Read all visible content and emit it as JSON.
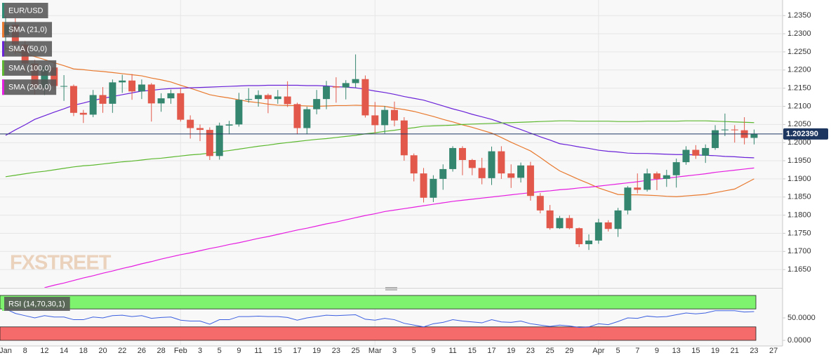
{
  "chart_data": {
    "type": "candlestick",
    "name": "EUR/USD",
    "color": "#2e8b74",
    "color_up": "#34866f",
    "color_down": "#e2584a",
    "watermark": "FXSTREET",
    "categories": [
      "Jan",
      null,
      "8",
      null,
      "12",
      null,
      "14",
      null,
      "18",
      null,
      "20",
      null,
      "22",
      null,
      "26",
      null,
      "28",
      null,
      "Feb",
      null,
      "3",
      null,
      "5",
      null,
      "9",
      null,
      "11",
      null,
      "15",
      null,
      "17",
      null,
      "19",
      null,
      "23",
      null,
      "25",
      null,
      "Mar",
      null,
      "3",
      null,
      "5",
      null,
      "9",
      null,
      "11",
      null,
      "15",
      null,
      "17",
      null,
      "19",
      null,
      "23",
      null,
      "25",
      null,
      "29",
      null,
      null,
      "Apr",
      null,
      "5",
      null,
      "7",
      null,
      "9",
      null,
      "13",
      null,
      "15",
      null,
      "19",
      null,
      "21",
      null,
      "23",
      null,
      "27"
    ],
    "open": [
      1.2297,
      1.2325,
      1.227,
      1.2218,
      1.2152,
      1.2207,
      1.2156,
      1.2156,
      1.2082,
      1.2077,
      1.2131,
      1.2107,
      1.2166,
      1.2171,
      1.2141,
      1.216,
      1.2108,
      1.2122,
      1.2136,
      1.2063,
      1.204,
      1.2035,
      1.1963,
      1.2047,
      1.205,
      1.2118,
      1.212,
      1.2131,
      1.212,
      1.2127,
      1.2106,
      1.204,
      1.2092,
      1.212,
      1.2155,
      1.2152,
      1.2164,
      1.2175,
      1.2075,
      1.2048,
      1.209,
      1.2061,
      1.1965,
      1.1915,
      1.1848,
      1.19,
      1.1927,
      1.1985,
      1.1952,
      1.193,
      1.1902,
      1.1976,
      1.1915,
      1.1903,
      1.1937,
      1.1853,
      1.1813,
      1.1764,
      1.1792,
      1.1764,
      1.172,
      1.173,
      1.178,
      1.1762,
      1.1813,
      1.1876,
      1.187,
      1.1915,
      1.19,
      1.191,
      1.1946,
      1.198,
      1.1964,
      1.1985,
      1.2034,
      1.2036,
      1.2034,
      1.2013,
      null,
      null
    ],
    "high": [
      1.2349,
      1.2343,
      1.228,
      1.2228,
      1.2212,
      1.2222,
      1.2186,
      1.216,
      1.209,
      1.2145,
      1.2153,
      1.2174,
      1.2187,
      1.2189,
      1.2174,
      1.2164,
      1.2136,
      1.2146,
      1.2151,
      1.2075,
      1.205,
      1.2042,
      1.2055,
      1.206,
      1.2137,
      1.215,
      1.2144,
      1.2135,
      1.2145,
      1.2169,
      1.211,
      1.2099,
      1.2145,
      1.217,
      1.218,
      1.2172,
      1.2243,
      1.2185,
      1.2112,
      1.2101,
      1.2113,
      1.207,
      1.197,
      1.193,
      1.191,
      1.194,
      1.199,
      1.199,
      1.1955,
      1.1958,
      1.1989,
      1.199,
      1.194,
      1.1945,
      1.1947,
      1.1861,
      1.1828,
      1.1798,
      1.18,
      1.1766,
      1.1747,
      1.179,
      1.1786,
      1.182,
      1.188,
      1.1915,
      1.1928,
      1.192,
      1.1925,
      1.1956,
      1.199,
      1.1993,
      1.1995,
      1.2048,
      1.208,
      1.2048,
      1.207,
      1.2036,
      null,
      null
    ],
    "low": [
      1.2254,
      1.2244,
      1.2192,
      1.2132,
      1.2131,
      1.2145,
      1.2115,
      1.2073,
      1.2054,
      1.207,
      1.2082,
      1.2082,
      1.2137,
      1.2118,
      1.212,
      1.2058,
      1.2085,
      1.2107,
      1.2058,
      1.2011,
      1.2004,
      1.1952,
      1.1953,
      1.2023,
      1.2044,
      1.211,
      1.2099,
      1.2081,
      1.2107,
      1.2098,
      1.2023,
      1.2023,
      1.2078,
      1.2092,
      1.211,
      1.2119,
      1.2151,
      1.2069,
      1.2026,
      1.2025,
      1.2045,
      1.195,
      1.1893,
      1.1835,
      1.1836,
      1.187,
      1.192,
      1.191,
      1.191,
      1.1885,
      1.1883,
      1.19,
      1.1875,
      1.189,
      1.184,
      1.1805,
      1.176,
      1.1762,
      1.1761,
      1.1712,
      1.1704,
      1.1721,
      1.1755,
      1.174,
      1.1802,
      1.186,
      1.1865,
      1.1869,
      1.1878,
      1.1876,
      1.1939,
      1.1955,
      1.1944,
      1.198,
      1.2018,
      1.2,
      1.1995,
      1.1995,
      null,
      null
    ],
    "close": [
      1.2325,
      1.227,
      1.2218,
      1.2152,
      1.2207,
      1.2156,
      1.2156,
      1.2082,
      1.2077,
      1.2131,
      1.2107,
      1.2166,
      1.2171,
      1.2141,
      1.216,
      1.2108,
      1.2122,
      1.2136,
      1.2063,
      1.204,
      1.2035,
      1.1963,
      1.2047,
      1.205,
      1.2118,
      1.212,
      1.2131,
      1.212,
      1.2127,
      1.2106,
      1.204,
      1.2092,
      1.212,
      1.2155,
      1.2152,
      1.2164,
      1.2175,
      1.2075,
      1.2048,
      1.209,
      1.2061,
      1.1965,
      1.1915,
      1.1848,
      1.19,
      1.1927,
      1.1985,
      1.1952,
      1.193,
      1.1902,
      1.1976,
      1.1915,
      1.1903,
      1.1937,
      1.1853,
      1.1813,
      1.1764,
      1.1792,
      1.1764,
      1.172,
      1.173,
      1.178,
      1.1762,
      1.1813,
      1.1876,
      1.187,
      1.1915,
      1.19,
      1.191,
      1.1946,
      1.198,
      1.1964,
      1.1985,
      1.2034,
      1.2036,
      1.2034,
      1.2013,
      1.2024,
      null,
      null
    ],
    "series": [
      {
        "name": "SMA (21,0)",
        "color": "#e8792e",
        "values": [
          1.226,
          1.2252,
          1.2245,
          1.2237,
          1.2229,
          1.222,
          1.2212,
          1.2203,
          1.2201,
          1.2198,
          1.2196,
          1.2193,
          1.219,
          1.2187,
          1.2184,
          1.2178,
          1.2173,
          1.2167,
          1.2158,
          1.215,
          1.2141,
          1.2132,
          1.2127,
          1.2123,
          1.2118,
          1.2113,
          1.211,
          1.2106,
          1.2103,
          1.2102,
          1.2102,
          1.2101,
          1.21,
          1.2101,
          1.2102,
          1.2102,
          1.2103,
          1.2102,
          1.2101,
          1.21,
          1.2095,
          1.2091,
          1.2086,
          1.2079,
          1.2072,
          1.2064,
          1.2057,
          1.2049,
          1.2042,
          1.2034,
          1.2026,
          1.2014,
          1.2001,
          1.1989,
          1.1977,
          1.1959,
          1.194,
          1.1922,
          1.191,
          1.1898,
          1.1887,
          1.1875,
          1.1866,
          1.1857,
          1.1856,
          1.1856,
          1.1855,
          1.1854,
          1.1852,
          1.1851,
          1.1853,
          1.1855,
          1.1857,
          1.1862,
          1.1867,
          1.1872,
          1.1886,
          1.19,
          null,
          null
        ]
      },
      {
        "name": "SMA (50,0)",
        "color": "#6a22d8",
        "values": [
          1.202,
          1.2035,
          1.2049,
          1.2064,
          1.2074,
          1.2084,
          1.2093,
          1.2103,
          1.2109,
          1.2116,
          1.2122,
          1.2127,
          1.2132,
          1.2137,
          1.2142,
          1.2144,
          1.2147,
          1.2149,
          1.215,
          1.2151,
          1.2152,
          1.2153,
          1.2154,
          1.2155,
          1.2156,
          1.2157,
          1.2157,
          1.2158,
          1.2158,
          1.2158,
          1.2158,
          1.2157,
          1.2157,
          1.2156,
          1.2154,
          1.2153,
          1.2151,
          1.2147,
          1.2142,
          1.2138,
          1.2133,
          1.2127,
          1.2122,
          1.2117,
          1.2109,
          1.2101,
          1.2093,
          1.2086,
          1.2078,
          1.2071,
          1.2064,
          1.2055,
          1.2045,
          1.2036,
          1.2026,
          1.2016,
          1.2007,
          1.1997,
          1.1993,
          1.1988,
          1.1984,
          1.1979,
          1.1976,
          1.1974,
          1.1971,
          1.197,
          1.197,
          1.1969,
          1.1968,
          1.1967,
          1.1967,
          1.1966,
          1.1965,
          1.1964,
          1.1962,
          1.1961,
          1.1959,
          1.1958,
          null,
          null
        ]
      },
      {
        "name": "SMA (100,0)",
        "color": "#5cb82e",
        "values": [
          1.1906,
          1.191,
          1.1914,
          1.1918,
          1.1921,
          1.1925,
          1.1929,
          1.1933,
          1.1936,
          1.1938,
          1.1941,
          1.1944,
          1.1947,
          1.1949,
          1.1952,
          1.1955,
          1.1957,
          1.196,
          1.1963,
          1.1966,
          1.1968,
          1.1971,
          1.1975,
          1.1978,
          1.1982,
          1.1986,
          1.199,
          1.1993,
          1.1997,
          1.2,
          1.2003,
          1.2006,
          1.2009,
          1.2011,
          1.2014,
          1.2017,
          1.202,
          1.2024,
          1.2027,
          1.2031,
          1.2034,
          1.2038,
          1.2041,
          1.2045,
          1.2046,
          1.2047,
          1.2048,
          1.205,
          1.2051,
          1.2052,
          1.2053,
          1.2054,
          1.2055,
          1.2056,
          1.2057,
          1.2058,
          1.2059,
          1.206,
          1.206,
          1.2059,
          1.2059,
          1.2059,
          1.2059,
          1.2058,
          1.2058,
          1.2058,
          1.2059,
          1.2059,
          1.2059,
          1.2059,
          1.206,
          1.206,
          1.206,
          1.2059,
          1.2058,
          1.2057,
          1.2056,
          1.2055,
          null,
          null
        ]
      },
      {
        "name": "SMA (200,0)",
        "color": "#e51de0",
        "values": [
          null,
          null,
          null,
          null,
          1.16,
          1.1607,
          1.1613,
          1.162,
          1.1627,
          1.1633,
          1.164,
          1.1646,
          1.1653,
          1.1659,
          1.1666,
          1.1672,
          1.1679,
          1.1685,
          1.1691,
          1.1696,
          1.1702,
          1.1708,
          1.1713,
          1.1719,
          1.1724,
          1.173,
          1.1736,
          1.1741,
          1.1747,
          1.1753,
          1.1759,
          1.1764,
          1.177,
          1.1776,
          1.1781,
          1.1787,
          1.1793,
          1.1799,
          1.1804,
          1.181,
          1.1814,
          1.1818,
          1.1822,
          1.1826,
          1.183,
          1.1834,
          1.1838,
          1.1841,
          1.1844,
          1.1847,
          1.185,
          1.1853,
          1.1856,
          1.1859,
          1.1862,
          1.1865,
          1.1867,
          1.187,
          1.1872,
          1.1875,
          1.1877,
          1.188,
          1.1883,
          1.1886,
          1.1889,
          1.1892,
          1.1896,
          1.1899,
          1.1902,
          1.1905,
          1.1908,
          1.1911,
          1.1914,
          1.1918,
          1.1921,
          1.1924,
          1.1927,
          1.193,
          null,
          null
        ]
      }
    ],
    "ylim": [
      1.16,
      1.2393
    ],
    "yticks": [
      {
        "value": 1.165,
        "label": "1.1650"
      },
      {
        "value": 1.17,
        "label": "1.1700"
      },
      {
        "value": 1.175,
        "label": "1.1750"
      },
      {
        "value": 1.18,
        "label": "1.1800"
      },
      {
        "value": 1.185,
        "label": "1.1850"
      },
      {
        "value": 1.19,
        "label": "1.1900"
      },
      {
        "value": 1.195,
        "label": "1.1950"
      },
      {
        "value": 1.2,
        "label": "1.2000"
      },
      {
        "value": 1.205,
        "label": "1.2050"
      },
      {
        "value": 1.21,
        "label": "1.2100"
      },
      {
        "value": 1.215,
        "label": "1.2150"
      },
      {
        "value": 1.22,
        "label": "1.2200"
      },
      {
        "value": 1.225,
        "label": "1.2250"
      },
      {
        "value": 1.23,
        "label": "1.2300"
      },
      {
        "value": 1.235,
        "label": "1.2350"
      }
    ],
    "grid": true,
    "last_price": {
      "value": 1.20239,
      "label": "1.202390",
      "color": "#1d3660"
    },
    "rsi": {
      "name": "RSI (14,70,30,1)",
      "color": "#3b5fe0",
      "values": [
        70,
        60,
        55,
        50,
        55,
        52,
        52,
        46,
        46,
        52,
        50,
        55,
        56,
        53,
        55,
        49,
        51,
        52,
        45,
        43,
        43,
        36,
        46,
        46,
        53,
        53,
        54,
        53,
        53,
        51,
        45,
        50,
        53,
        56,
        55,
        56,
        57,
        47,
        45,
        49,
        46,
        38,
        34,
        30,
        37,
        40,
        46,
        43,
        41,
        39,
        46,
        41,
        40,
        43,
        37,
        34,
        31,
        34,
        32,
        29,
        30,
        37,
        35,
        42,
        50,
        49,
        54,
        52,
        53,
        57,
        61,
        59,
        61,
        66,
        66,
        66,
        63,
        64,
        null,
        null
      ],
      "ylim": [
        -12.5,
        112.5
      ],
      "yticks": [
        {
          "value": 0,
          "label": "0.0000"
        },
        {
          "value": 50,
          "label": "50.0000"
        }
      ],
      "overbought": [
        70,
        100
      ],
      "oversold": [
        0,
        30
      ],
      "overbought_color": "#7ef46e",
      "oversold_color": "#f56b6b"
    }
  }
}
